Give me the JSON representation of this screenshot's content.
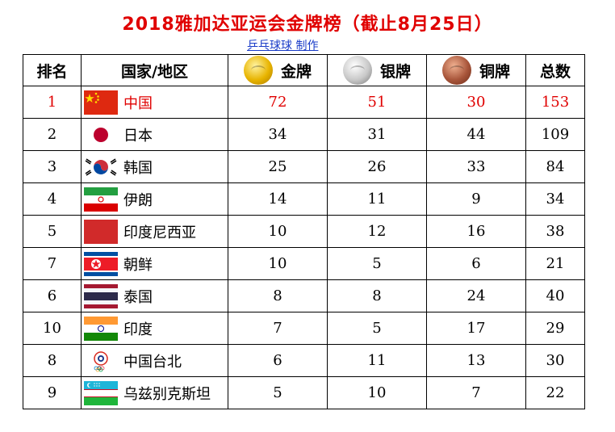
{
  "title": "2018雅加达亚运会金牌榜（截止8月25日）",
  "subtitle": "乒乓球球 制作",
  "headers": {
    "rank": "排名",
    "country": "国家/地区",
    "gold": "金牌",
    "silver": "银牌",
    "bronze": "铜牌",
    "total": "总数"
  },
  "rows": [
    {
      "rank": "1",
      "country": "中国",
      "flag": "china-flag",
      "gold": "72",
      "silver": "51",
      "bronze": "30",
      "total": "153"
    },
    {
      "rank": "2",
      "country": "日本",
      "flag": "japan-flag",
      "gold": "34",
      "silver": "31",
      "bronze": "44",
      "total": "109"
    },
    {
      "rank": "3",
      "country": "韩国",
      "flag": "korea-flag",
      "gold": "25",
      "silver": "26",
      "bronze": "33",
      "total": "84"
    },
    {
      "rank": "4",
      "country": "伊朗",
      "flag": "iran-flag",
      "gold": "14",
      "silver": "11",
      "bronze": "9",
      "total": "34"
    },
    {
      "rank": "5",
      "country": "印度尼西亚",
      "flag": "indonesia-flag",
      "gold": "10",
      "silver": "12",
      "bronze": "16",
      "total": "38"
    },
    {
      "rank": "7",
      "country": "朝鲜",
      "flag": "north-korea-flag",
      "gold": "10",
      "silver": "5",
      "bronze": "6",
      "total": "21"
    },
    {
      "rank": "6",
      "country": "泰国",
      "flag": "thailand-flag",
      "gold": "8",
      "silver": "8",
      "bronze": "24",
      "total": "40"
    },
    {
      "rank": "10",
      "country": "印度",
      "flag": "india-flag",
      "gold": "7",
      "silver": "5",
      "bronze": "17",
      "total": "29"
    },
    {
      "rank": "8",
      "country": "中国台北",
      "flag": "chinese-taipei-flag",
      "gold": "6",
      "silver": "11",
      "bronze": "13",
      "total": "30"
    },
    {
      "rank": "9",
      "country": "乌兹别克斯坦",
      "flag": "uzbekistan-flag",
      "gold": "5",
      "silver": "10",
      "bronze": "7",
      "total": "22"
    }
  ],
  "colors": {
    "title": "#e00000",
    "subtitle": "#1a3cc8",
    "highlight_row": "#e00000"
  }
}
